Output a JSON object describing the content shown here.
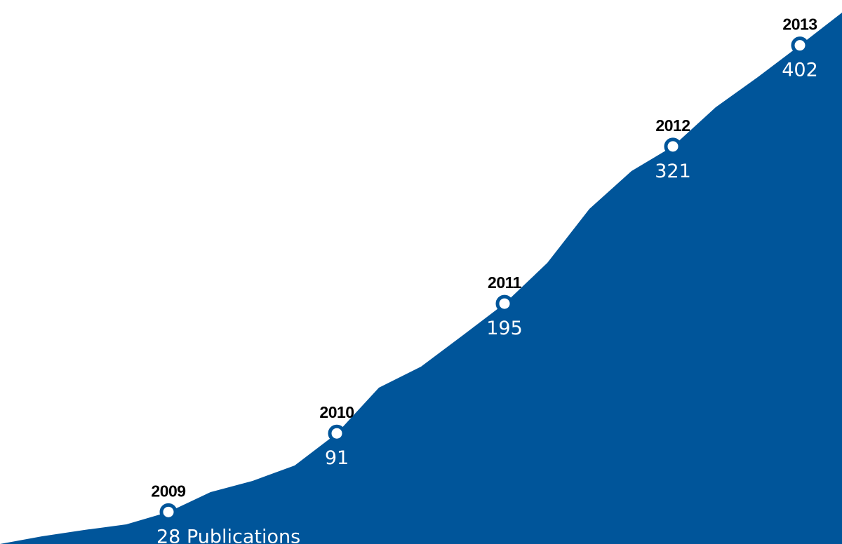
{
  "chart_data": {
    "type": "area",
    "title": "",
    "xlabel": "",
    "ylabel": "",
    "x": [
      "2009",
      "2010",
      "2011",
      "2012",
      "2013"
    ],
    "values": [
      28,
      91,
      195,
      321,
      402
    ],
    "value_labels": [
      "28 Publications",
      "91",
      "195",
      "321",
      "402"
    ],
    "ylim": [
      0,
      420
    ],
    "grid": false,
    "legend": "none",
    "colors": {
      "area": "#00559a",
      "marker_fill": "#ffffff",
      "year_text": "#000000",
      "value_text": "#ffffff"
    }
  }
}
